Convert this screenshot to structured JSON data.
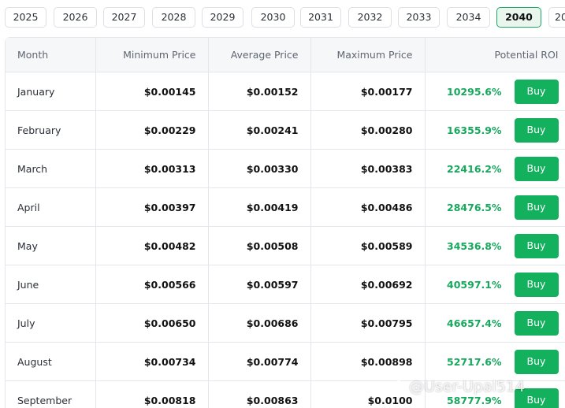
{
  "years": {
    "tabs": [
      "2025",
      "2026",
      "2027",
      "2028",
      "2029",
      "2030",
      "2031",
      "2032",
      "2033",
      "2034",
      "2040",
      "20"
    ],
    "selected": "2040"
  },
  "table": {
    "headers": {
      "month": "Month",
      "minimum": "Minimum Price",
      "average": "Average Price",
      "maximum": "Maximum Price",
      "roi": "Potential ROI"
    },
    "buy_label": "Buy",
    "rows": [
      {
        "month": "January",
        "min": "$0.00145",
        "avg": "$0.00152",
        "max": "$0.00177",
        "roi": "10295.6%"
      },
      {
        "month": "February",
        "min": "$0.00229",
        "avg": "$0.00241",
        "max": "$0.00280",
        "roi": "16355.9%"
      },
      {
        "month": "March",
        "min": "$0.00313",
        "avg": "$0.00330",
        "max": "$0.00383",
        "roi": "22416.2%"
      },
      {
        "month": "April",
        "min": "$0.00397",
        "avg": "$0.00419",
        "max": "$0.00486",
        "roi": "28476.5%"
      },
      {
        "month": "May",
        "min": "$0.00482",
        "avg": "$0.00508",
        "max": "$0.00589",
        "roi": "34536.8%"
      },
      {
        "month": "June",
        "min": "$0.00566",
        "avg": "$0.00597",
        "max": "$0.00692",
        "roi": "40597.1%"
      },
      {
        "month": "July",
        "min": "$0.00650",
        "avg": "$0.00686",
        "max": "$0.00795",
        "roi": "46657.4%"
      },
      {
        "month": "August",
        "min": "$0.00734",
        "avg": "$0.00774",
        "max": "$0.00898",
        "roi": "52717.6%"
      },
      {
        "month": "September",
        "min": "$0.00818",
        "avg": "$0.00863",
        "max": "$0.0100",
        "roi": "58777.9%"
      }
    ]
  },
  "watermark": {
    "text": "@User-Upal514"
  },
  "colors": {
    "accent_green": "#13b15e",
    "roi_green": "#16a85c",
    "active_tab_bg": "#e8f6ee"
  }
}
